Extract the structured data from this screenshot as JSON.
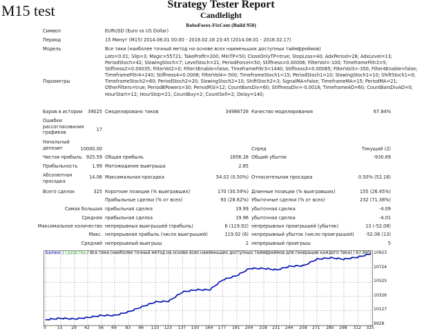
{
  "header": {
    "big_title": "M15 test",
    "title": "Strategy Tester Report",
    "expert": "Candlelight",
    "server": "RoboForex-FixCent (Build 950)"
  },
  "info": {
    "symbol_label": "Символ",
    "symbol": "EURUSD (Euro vs US Dollar)",
    "period_label": "Период",
    "period": "15 Минут (M15) 2014.08.01 00:00 - 2016.02.16 23:45 (2014.08.01 - 2016.02.17)",
    "model_label": "Модель",
    "model": "Все тики (наиболее точный метод на основе всех наименьших доступных таймфреймов)",
    "params_label": "Параметры",
    "params": [
      "Lots=0.01; Slip=3; Magic=55721; TakeProfit=200; MinTP=50; CloseOnlyTP=true; StopLoss=40; AdxPeriod=28; AdxLevel=13;",
      "PeriodStoch=42; SlowingStoch=7; LevelStoch=21; PeriodForceI=50; Stiffness=0.00006; FilterVol=-100; TimeframeFiltr2=5;",
      "Stiffness2=0.00035; FilterVol2=0; Filter3Enable=false; TimeframeFiltr3=1440; Stiffness3=0.00085; FilterVol3=-350; Filter4Enable=false;",
      "TimeframeFiltr4=240; Stiffness4=0.0008; FilterVol4=-500; TimeframeStoch1=15; PeriodStoch1=10; SlowingStoch1=10; ShiftStoch1=0;",
      "TimeframeStoch2=60; PeriodStoch2=20; SlowingStoch2=10; ShiftStoch2=3; SignalMA=false; TimeframeMA=15; PeriodMA=21;",
      "OtherFilters=true; PeriodBPowers=30; PeriodRSI=12; CountBarsDiv=60; StiffnessDiv=-0.0018; TimeframeAO=60; CountBarsDivAO=0;",
      "HourStart=12; HourStop=21; CountBuy=2; CountSell=2; Delay=140;"
    ]
  },
  "stats": {
    "bars_label": "Баров в истории",
    "bars": "39025",
    "ticks_label": "Смоделировано тиков",
    "ticks": "34986726",
    "quality_label": "Качество моделирования",
    "quality": "67.84%",
    "errors_label": "Ошибки рассогласования графиков",
    "errors": "17",
    "deposit_label": "Начальный депозит",
    "deposit": "10000.00",
    "spread_label": "Спред",
    "spread": "Текущий (2)",
    "net_label": "Чистая прибыль",
    "net": "925.59",
    "gross_profit_label": "Общая прибыль",
    "gross_profit": "1856.28",
    "gross_loss_label": "Общий убыток",
    "gross_loss": "-930.69",
    "pf_label": "Прибыльность",
    "pf": "1.99",
    "expect_label": "Матожидание выигрыша",
    "expect": "2.85",
    "abs_dd_label": "Абсолютная просадка",
    "abs_dd": "14.06",
    "max_dd_label": "Максимальная просадка",
    "max_dd": "54.02 (0.50%)",
    "rel_dd_label": "Относительная просадка",
    "rel_dd": "0.50% (52.16)",
    "total_label": "Всего сделок",
    "total": "325",
    "short_label": "Короткие позиции (% выигравших)",
    "short": "170 (30.59%)",
    "long_label": "Длинные позиции (% выигравших)",
    "long": "155 (26.45%)",
    "win_label": "Прибыльные сделки (% от всех)",
    "win": "93 (28.62%)",
    "loss_label": "Убыточные сделки (% от всех)",
    "loss": "232 (71.38%)",
    "largest_label": "Самая большая",
    "largest_win_label": "прибыльная сделка",
    "largest_win": "19.99",
    "largest_loss_label": "убыточная сделка",
    "largest_loss": "-4.09",
    "avg_label": "Средняя",
    "avg_win_label": "прибыльная сделка",
    "avg_win": "19.96",
    "avg_loss_label": "убыточная сделка",
    "avg_loss": "-4.01",
    "maxcount_label": "Максимальное количество",
    "maxcw_label": "непрерывных выигрышей (прибыль)",
    "maxcw": "6 (119.92)",
    "maxcl_label": "непрерывных проигрышей (убыток)",
    "maxcl": "13 (-52.08)",
    "maxs_label": "Макс.",
    "maxsw_label": "непрерывная прибыль (число выигрышей)",
    "maxsw": "119.92 (6)",
    "maxsl_label": "непрерывный убыток (число проигрышей)",
    "maxsl": "-52.08 (13)",
    "avgc_label": "Средний",
    "avgcw_label": "непрерывный выигрыш",
    "avgcw": "2",
    "avgcl_label": "непрерывный проигрыш",
    "avgcl": "5"
  },
  "chart_data": {
    "type": "line",
    "legend_balance": "Баланс",
    "legend_sep": " / ",
    "legend_equity": "Средства",
    "legend_rest": " / Все тики (наиболее точный метод на основе всех наименьших доступных таймфреймов для генерации каждого тика) / 67.84%",
    "x_ticks": [
      0,
      15,
      29,
      42,
      56,
      69,
      83,
      96,
      110,
      123,
      137,
      150,
      164,
      177,
      191,
      204,
      218,
      231,
      244,
      258,
      271,
      285,
      298,
      312,
      325
    ],
    "y_ticks": [
      9928,
      10127,
      10326,
      10525,
      10724,
      10923
    ],
    "xlim": [
      0,
      325
    ],
    "ylim": [
      9928,
      10955
    ],
    "series": [
      {
        "name": "Баланс",
        "color": "#0000c0",
        "x": [
          0,
          15,
          29,
          42,
          56,
          69,
          83,
          96,
          110,
          123,
          137,
          150,
          164,
          177,
          191,
          204,
          218,
          231,
          244,
          258,
          271,
          285,
          298,
          312,
          325
        ],
        "values": [
          10000,
          10020,
          10010,
          10030,
          10060,
          10060,
          10110,
          10180,
          10250,
          10260,
          10390,
          10420,
          10420,
          10560,
          10620,
          10720,
          10720,
          10700,
          10750,
          10760,
          10850,
          10870,
          10850,
          10880,
          10925
        ]
      },
      {
        "name": "Средства",
        "color": "#40c040"
      }
    ],
    "grid": true
  }
}
